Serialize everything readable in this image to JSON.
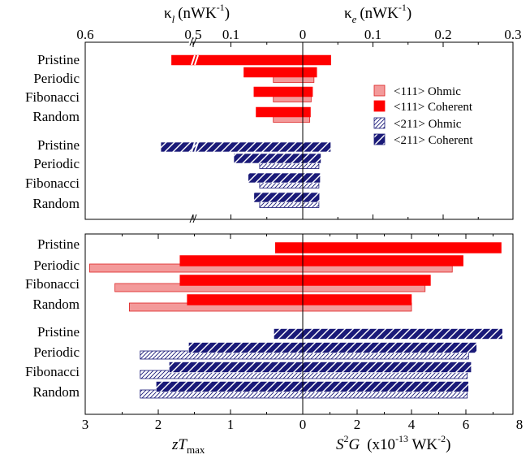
{
  "colors": {
    "coherent_111": "#ff0000",
    "ohmic_111": "#f39a9a",
    "ohmic_111_edge": "#dd2222",
    "coherent_211": "#1a1a78",
    "ohmic_211_hatch": "#1a1a78"
  },
  "chart_data": [
    {
      "type": "bar",
      "orientation": "horizontal",
      "panel": "top",
      "top_axis_left": {
        "label": "κl (nWK-1)",
        "label_main": "κ",
        "label_sub": "l",
        "label_unit": "(nWK",
        "label_sup": "-1",
        "label_close": ")",
        "tick_labels": [
          "0.6",
          "0.5",
          "0.1",
          "0"
        ],
        "broken_axis": true
      },
      "top_axis_right": {
        "label": "κe (nWK-1)",
        "label_main": "κ",
        "label_sub": "e",
        "label_unit": "(nWK",
        "label_sup": "-1",
        "label_close": ")",
        "ticks": [
          0.1,
          0.2,
          0.3
        ],
        "tick_labels": [
          "0.1",
          "0.2",
          "0.3"
        ],
        "xlim": [
          0,
          0.3
        ]
      },
      "categories": [
        "Pristine",
        "Periodic",
        "Fibonacci",
        "Random",
        "Pristine",
        "Periodic",
        "Fibonacci",
        "Random"
      ],
      "series": [
        {
          "name": "<111> Ohmic",
          "kappa_l": [
            null,
            0.041,
            0.041,
            0.041
          ],
          "kappa_e": [
            null,
            0.016,
            0.012,
            0.01
          ]
        },
        {
          "name": "<111> Coherent",
          "kappa_l": [
            0.52,
            0.082,
            0.068,
            0.065
          ],
          "kappa_e": [
            0.04,
            0.02,
            0.014,
            0.011
          ]
        },
        {
          "name": "<211> Ohmic",
          "kappa_l": [
            null,
            0.06,
            0.06,
            0.06
          ],
          "kappa_e": [
            null,
            0.023,
            0.023,
            0.023
          ]
        },
        {
          "name": "<211> Coherent",
          "kappa_l": [
            0.53,
            0.096,
            0.076,
            0.068
          ],
          "kappa_e": [
            0.04,
            0.026,
            0.025,
            0.024
          ]
        }
      ],
      "legend": {
        "placement": "right",
        "entries": [
          "<111> Ohmic",
          "<111> Coherent",
          "<211> Ohmic",
          "<211> Coherent"
        ]
      }
    },
    {
      "type": "bar",
      "orientation": "horizontal",
      "panel": "bottom",
      "bottom_axis_left": {
        "label": "zTmax",
        "label_main": "zT",
        "label_sub": "max",
        "ticks": [
          3,
          2,
          1,
          0
        ],
        "tick_labels": [
          "3",
          "2",
          "1",
          "0"
        ],
        "xlim": [
          3,
          0
        ]
      },
      "bottom_axis_right": {
        "label": "S2G (x10-13 WK-2)",
        "label_S": "S",
        "label_S_sup": "2",
        "label_G": "G",
        "label_open": "(x10",
        "label_e1": "-13",
        "label_mid": " WK",
        "label_e2": "-2",
        "label_close": ")",
        "ticks": [
          2,
          4,
          6,
          8
        ],
        "tick_labels": [
          "2",
          "4",
          "6",
          "8"
        ],
        "xlim": [
          0,
          8
        ]
      },
      "categories": [
        "Pristine",
        "Periodic",
        "Fibonacci",
        "Random",
        "Pristine",
        "Periodic",
        "Fibonacci",
        "Random"
      ],
      "series": [
        {
          "name": "<111> Ohmic",
          "zTmax": [
            null,
            2.95,
            2.6,
            2.4
          ],
          "S2G": [
            null,
            5.5,
            4.5,
            4.0
          ]
        },
        {
          "name": "<111> Coherent",
          "zTmax": [
            0.38,
            1.7,
            1.7,
            1.6
          ],
          "S2G": [
            7.3,
            5.9,
            4.7,
            4.0
          ]
        },
        {
          "name": "<211> Ohmic",
          "zTmax": [
            null,
            2.25,
            2.25,
            2.25
          ],
          "S2G": [
            null,
            6.1,
            6.05,
            6.05
          ]
        },
        {
          "name": "<211> Coherent",
          "zTmax": [
            0.4,
            1.58,
            1.85,
            2.03
          ],
          "S2G": [
            7.35,
            6.4,
            6.2,
            6.1
          ]
        }
      ]
    }
  ]
}
